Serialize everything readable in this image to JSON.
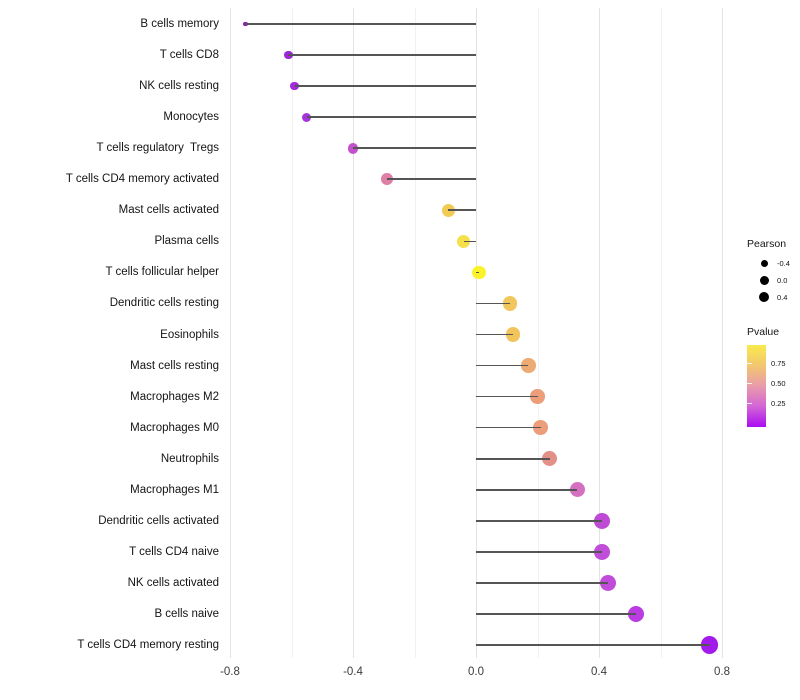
{
  "chart_data": {
    "type": "lollipop",
    "orientation": "horizontal",
    "title": "",
    "xlabel": "",
    "ylabel": "",
    "xlim": [
      -0.82,
      0.85
    ],
    "grid": "on",
    "stem_color": "#555555",
    "x_axis": {
      "major_tick_labels": [
        "-0.8",
        "-0.4",
        "0.0",
        "0.4",
        "0.8"
      ],
      "major_tick_values": [
        -0.8,
        -0.4,
        0.0,
        0.4,
        0.8
      ],
      "minor_tick_values": [
        -0.6,
        -0.2,
        0.2,
        0.6
      ]
    },
    "rows": [
      {
        "label": "B cells memory",
        "pearson": -0.75,
        "dot_color": "#8E17CE"
      },
      {
        "label": "T cells CD8",
        "pearson": -0.61,
        "dot_color": "#9B27D8"
      },
      {
        "label": "NK cells resting",
        "pearson": -0.59,
        "dot_color": "#A32BDC"
      },
      {
        "label": "Monocytes",
        "pearson": -0.55,
        "dot_color": "#A534DA"
      },
      {
        "label": "T cells regulatory  Tregs",
        "pearson": -0.4,
        "dot_color": "#C350CC"
      },
      {
        "label": "T cells CD4 memory activated",
        "pearson": -0.29,
        "dot_color": "#DE7FA6"
      },
      {
        "label": "Mast cells activated",
        "pearson": -0.09,
        "dot_color": "#F2CB55"
      },
      {
        "label": "Plasma cells",
        "pearson": -0.04,
        "dot_color": "#F5E04B"
      },
      {
        "label": "T cells follicular helper",
        "pearson": 0.01,
        "dot_color": "#FAF32B"
      },
      {
        "label": "Dendritic cells resting",
        "pearson": 0.11,
        "dot_color": "#F1C75D"
      },
      {
        "label": "Eosinophils",
        "pearson": 0.12,
        "dot_color": "#F1C55B"
      },
      {
        "label": "Mast cells resting",
        "pearson": 0.17,
        "dot_color": "#EDAA72"
      },
      {
        "label": "Macrophages M2",
        "pearson": 0.2,
        "dot_color": "#EC9E7B"
      },
      {
        "label": "Macrophages M0",
        "pearson": 0.21,
        "dot_color": "#EC9D79"
      },
      {
        "label": "Neutrophils",
        "pearson": 0.24,
        "dot_color": "#E29088"
      },
      {
        "label": "Macrophages M1",
        "pearson": 0.33,
        "dot_color": "#D56FC0"
      },
      {
        "label": "Dendritic cells activated",
        "pearson": 0.41,
        "dot_color": "#BE4AD6"
      },
      {
        "label": "T cells CD4 naive",
        "pearson": 0.41,
        "dot_color": "#C04ED8"
      },
      {
        "label": "NK cells activated",
        "pearson": 0.43,
        "dot_color": "#C14BDB"
      },
      {
        "label": "B cells naive",
        "pearson": 0.52,
        "dot_color": "#BB3CE2"
      },
      {
        "label": "T cells CD4 memory resting",
        "pearson": 0.76,
        "dot_color": "#A21BEC"
      }
    ],
    "legend": {
      "size": {
        "title": "Pearson",
        "entries": [
          {
            "label": "-0.4",
            "radius": 3.5
          },
          {
            "label": "0.0",
            "radius": 4.5
          },
          {
            "label": "0.4",
            "radius": 5.3
          }
        ],
        "dot_color": "#000000"
      },
      "color": {
        "title": "Pvalue",
        "tick_labels": [
          "0.75",
          "0.50",
          "0.25"
        ],
        "gradient_top_to_bottom": [
          "#F9EA4D",
          "#F2C76F",
          "#E99BAA",
          "#D365D6",
          "#A90DF2"
        ]
      }
    }
  }
}
